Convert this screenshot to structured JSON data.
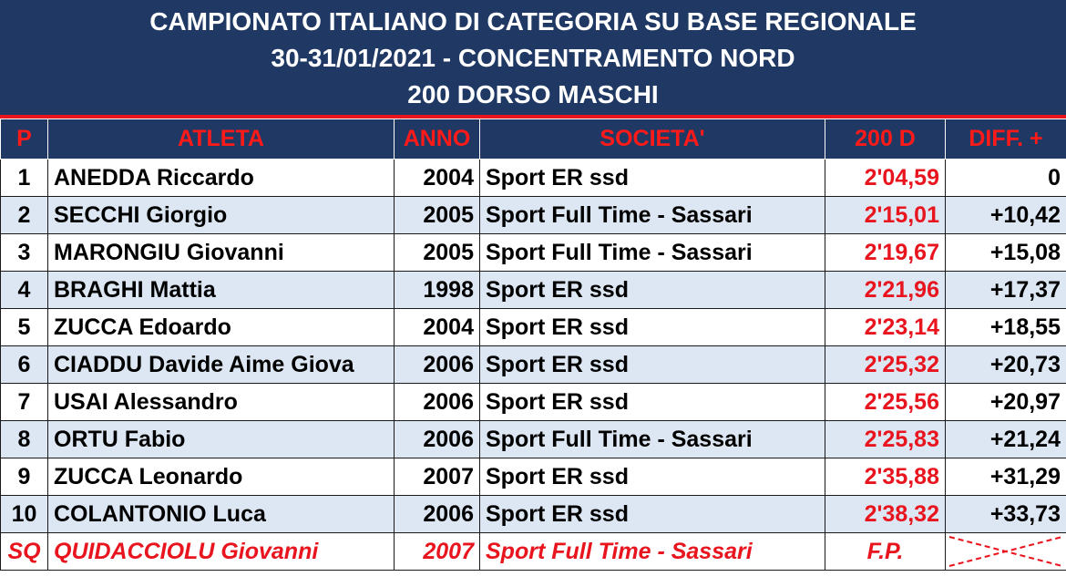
{
  "header": {
    "title_lines": [
      "CAMPIONATO ITALIANO DI CATEGORIA SU BASE REGIONALE",
      "30-31/01/2021 - CONCENTRAMENTO NORD",
      "200 DORSO MASCHI"
    ]
  },
  "table": {
    "columns": [
      "P",
      "ATLETA",
      "ANNO",
      "SOCIETA'",
      "200 D",
      "DIFF. +"
    ],
    "rows": [
      [
        "1",
        "ANEDDA Riccardo",
        "2004",
        "Sport ER ssd",
        "2'04,59",
        "0"
      ],
      [
        "2",
        "SECCHI Giorgio",
        "2005",
        "Sport Full Time - Sassari",
        "2'15,01",
        "+10,42"
      ],
      [
        "3",
        "MARONGIU Giovanni",
        "2005",
        "Sport Full Time - Sassari",
        "2'19,67",
        "+15,08"
      ],
      [
        "4",
        "BRAGHI Mattia",
        "1998",
        "Sport ER ssd",
        "2'21,96",
        "+17,37"
      ],
      [
        "5",
        "ZUCCA Edoardo",
        "2004",
        "Sport ER ssd",
        "2'23,14",
        "+18,55"
      ],
      [
        "6",
        "CIADDU Davide Aime Giova",
        "2006",
        "Sport ER ssd",
        "2'25,32",
        "+20,73"
      ],
      [
        "7",
        "USAI Alessandro",
        "2006",
        "Sport ER ssd",
        "2'25,56",
        "+20,97"
      ],
      [
        "8",
        "ORTU Fabio",
        "2006",
        "Sport Full Time - Sassari",
        "2'25,83",
        "+21,24"
      ],
      [
        "9",
        "ZUCCA Leonardo",
        "2007",
        "Sport ER ssd",
        "2'35,88",
        "+31,29"
      ],
      [
        "10",
        "COLANTONIO Luca",
        "2006",
        "Sport ER ssd",
        "2'38,32",
        "+33,73"
      ],
      [
        "SQ",
        "QUIDACCIOLU Giovanni",
        "2007",
        "Sport Full Time - Sassari",
        "F.P."
      ]
    ]
  }
}
